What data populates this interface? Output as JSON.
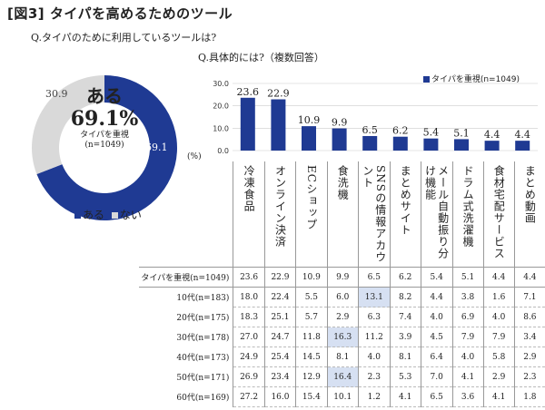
{
  "figure_title": "[図3] タイパを高めるためのツール",
  "q1_label": "Q.タイパのために利用しているツールは?",
  "q2_label": "Q.具体的には?（複数回答）",
  "chart_data": [
    {
      "type": "pie",
      "categories": [
        "ある",
        "ない"
      ],
      "values": [
        69.1,
        30.9
      ],
      "center_big": "ある",
      "center_pct": "69.1%",
      "center_sub1": "タイパを重視",
      "center_sub2": "(n=1049)",
      "colors": [
        "#1f3a93",
        "#d9d9d9"
      ],
      "legend_placement": "bottom"
    },
    {
      "type": "bar",
      "categories": [
        "冷凍食品",
        "オンライン決済",
        "ECショップ",
        "食洗機",
        "SNSの情報アカウント",
        "まとめサイト",
        "メール自動振り分け機能",
        "ドラム式洗濯機",
        "食材宅配サービス",
        "まとめ動画"
      ],
      "series": [
        {
          "name": "タイパを重視(n=1049)",
          "values": [
            23.6,
            22.9,
            10.9,
            9.9,
            6.5,
            6.2,
            5.4,
            5.1,
            4.4,
            4.4
          ]
        }
      ],
      "ylim": [
        0,
        30
      ],
      "yticks": [
        "0.0",
        "10.0",
        "20.0",
        "30.0"
      ],
      "ylabel": "(%)",
      "legend_placement": "top-right",
      "color": "#1f3a93"
    },
    {
      "type": "table",
      "rows": [
        {
          "label": "タイパを重視(n=1049)",
          "values": [
            "23.6",
            "22.9",
            "10.9",
            "9.9",
            "6.5",
            "6.2",
            "5.4",
            "5.1",
            "4.4",
            "4.4"
          ],
          "hl": -1
        },
        {
          "label": "10代(n=183)",
          "values": [
            "18.0",
            "22.4",
            "5.5",
            "6.0",
            "13.1",
            "8.2",
            "4.4",
            "3.8",
            "1.6",
            "7.1"
          ],
          "hl": 4
        },
        {
          "label": "20代(n=175)",
          "values": [
            "18.3",
            "25.1",
            "5.7",
            "2.9",
            "6.3",
            "7.4",
            "4.0",
            "6.9",
            "4.0",
            "8.6"
          ],
          "hl": -1
        },
        {
          "label": "30代(n=178)",
          "values": [
            "27.0",
            "24.7",
            "11.8",
            "16.3",
            "11.2",
            "3.9",
            "4.5",
            "7.9",
            "7.9",
            "3.4"
          ],
          "hl": 3
        },
        {
          "label": "40代(n=173)",
          "values": [
            "24.9",
            "25.4",
            "14.5",
            "8.1",
            "4.0",
            "8.1",
            "6.4",
            "4.0",
            "5.8",
            "2.9"
          ],
          "hl": -1
        },
        {
          "label": "50代(n=171)",
          "values": [
            "26.9",
            "23.4",
            "12.9",
            "16.4",
            "2.3",
            "5.3",
            "7.0",
            "4.1",
            "2.9",
            "2.3"
          ],
          "hl": 3
        },
        {
          "label": "60代(n=169)",
          "values": [
            "27.2",
            "16.0",
            "15.4",
            "10.1",
            "1.2",
            "4.1",
            "6.5",
            "3.6",
            "4.1",
            "1.8"
          ],
          "hl": -1
        }
      ]
    }
  ]
}
